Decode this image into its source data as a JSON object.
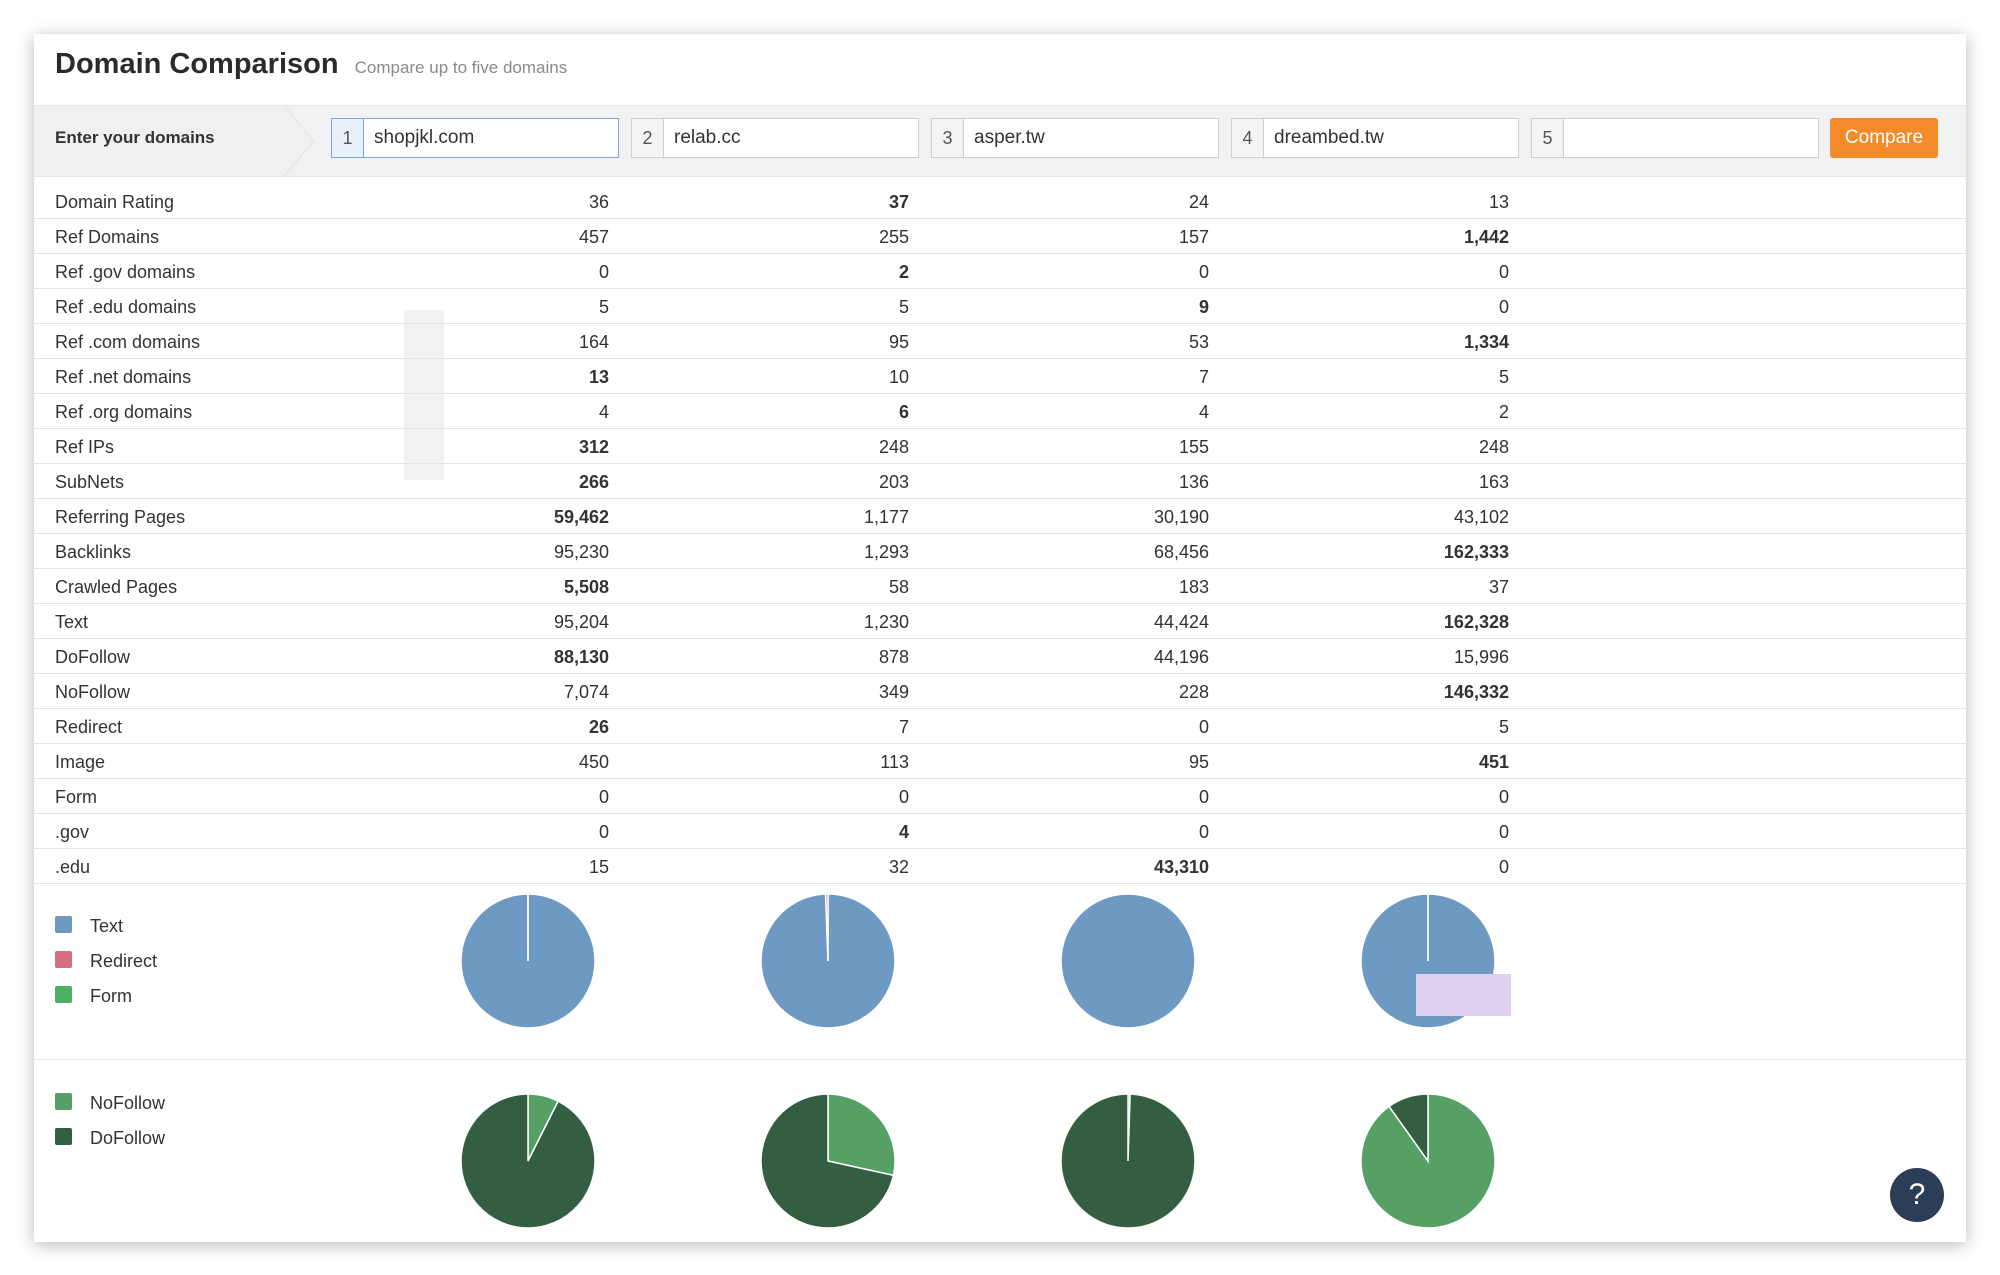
{
  "header": {
    "title": "Domain Comparison",
    "subtitle": "Compare up to five domains"
  },
  "domain_bar": {
    "label": "Enter your domains",
    "inputs": [
      {
        "num": "1",
        "value": "shopjkl.com"
      },
      {
        "num": "2",
        "value": "relab.cc"
      },
      {
        "num": "3",
        "value": "asper.tw"
      },
      {
        "num": "4",
        "value": "dreambed.tw"
      },
      {
        "num": "5",
        "value": ""
      }
    ],
    "compare_label": "Compare"
  },
  "metrics": [
    {
      "label": "Domain Rating",
      "values": [
        "36",
        "37",
        "24",
        "13"
      ],
      "best": 1
    },
    {
      "label": "Ref Domains",
      "values": [
        "457",
        "255",
        "157",
        "1,442"
      ],
      "best": 3
    },
    {
      "label": "Ref .gov domains",
      "values": [
        "0",
        "2",
        "0",
        "0"
      ],
      "best": 1
    },
    {
      "label": "Ref .edu domains",
      "values": [
        "5",
        "5",
        "9",
        "0"
      ],
      "best": 2
    },
    {
      "label": "Ref .com domains",
      "values": [
        "164",
        "95",
        "53",
        "1,334"
      ],
      "best": 3
    },
    {
      "label": "Ref .net domains",
      "values": [
        "13",
        "10",
        "7",
        "5"
      ],
      "best": 0
    },
    {
      "label": "Ref .org domains",
      "values": [
        "4",
        "6",
        "4",
        "2"
      ],
      "best": 1
    },
    {
      "label": "Ref IPs",
      "values": [
        "312",
        "248",
        "155",
        "248"
      ],
      "best": 0
    },
    {
      "label": "SubNets",
      "values": [
        "266",
        "203",
        "136",
        "163"
      ],
      "best": 0
    },
    {
      "label": "Referring Pages",
      "values": [
        "59,462",
        "1,177",
        "30,190",
        "43,102"
      ],
      "best": 0
    },
    {
      "label": "Backlinks",
      "values": [
        "95,230",
        "1,293",
        "68,456",
        "162,333"
      ],
      "best": 3
    },
    {
      "label": "Crawled Pages",
      "values": [
        "5,508",
        "58",
        "183",
        "37"
      ],
      "best": 0
    },
    {
      "label": "Text",
      "values": [
        "95,204",
        "1,230",
        "44,424",
        "162,328"
      ],
      "best": 3
    },
    {
      "label": "DoFollow",
      "values": [
        "88,130",
        "878",
        "44,196",
        "15,996"
      ],
      "best": 0
    },
    {
      "label": "NoFollow",
      "values": [
        "7,074",
        "349",
        "228",
        "146,332"
      ],
      "best": 3
    },
    {
      "label": "Redirect",
      "values": [
        "26",
        "7",
        "0",
        "5"
      ],
      "best": 0
    },
    {
      "label": "Image",
      "values": [
        "450",
        "113",
        "95",
        "451"
      ],
      "best": 3
    },
    {
      "label": "Form",
      "values": [
        "0",
        "0",
        "0",
        "0"
      ],
      "best": -1
    },
    {
      "label": ".gov",
      "values": [
        "0",
        "4",
        "0",
        "0"
      ],
      "best": 1
    },
    {
      "label": ".edu",
      "values": [
        "15",
        "32",
        "43,310",
        "0"
      ],
      "best": 2
    }
  ],
  "legend_types": [
    {
      "label": "Text",
      "color": "#6d99c3"
    },
    {
      "label": "Redirect",
      "color": "#d2707e"
    },
    {
      "label": "Form",
      "color": "#4caf63"
    }
  ],
  "legend_follow": [
    {
      "label": "NoFollow",
      "color": "#57a065"
    },
    {
      "label": "DoFollow",
      "color": "#335e42"
    }
  ],
  "chart_data": [
    {
      "type": "pie",
      "categories": [
        "Text",
        "Redirect",
        "Form"
      ],
      "series": [
        {
          "name": "shopjkl.com",
          "values": [
            95204,
            26,
            0
          ]
        },
        {
          "name": "relab.cc",
          "values": [
            1230,
            7,
            0
          ]
        },
        {
          "name": "asper.tw",
          "values": [
            44424,
            0,
            0
          ]
        },
        {
          "name": "dreambed.tw",
          "values": [
            162328,
            5,
            0
          ]
        }
      ]
    },
    {
      "type": "pie",
      "categories": [
        "NoFollow",
        "DoFollow"
      ],
      "series": [
        {
          "name": "shopjkl.com",
          "values": [
            7074,
            88130
          ]
        },
        {
          "name": "relab.cc",
          "values": [
            349,
            878
          ]
        },
        {
          "name": "asper.tw",
          "values": [
            228,
            44196
          ]
        },
        {
          "name": "dreambed.tw",
          "values": [
            146332,
            15996
          ]
        }
      ]
    }
  ],
  "help_label": "?"
}
